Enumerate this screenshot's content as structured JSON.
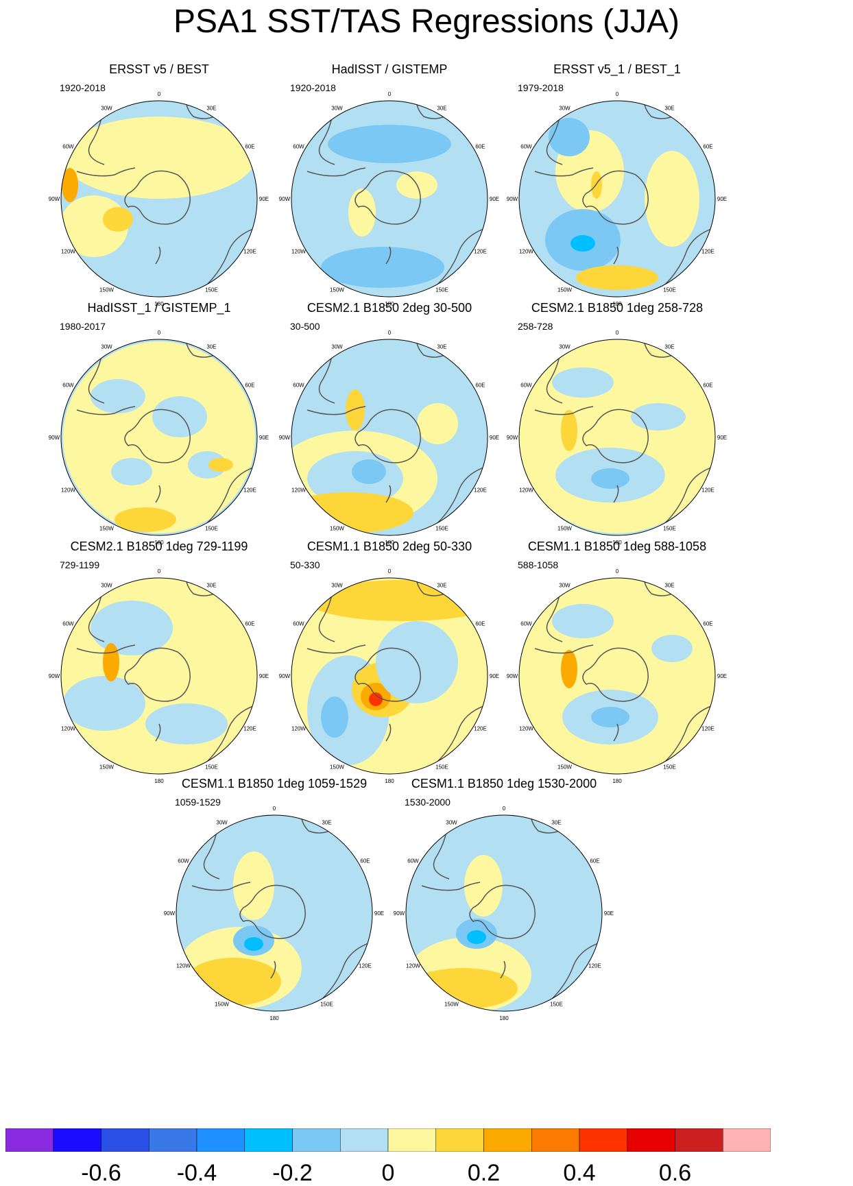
{
  "title": "PSA1 SST/TAS Regressions (JJA)",
  "panels": [
    {
      "title": "ERSST v5 / BEST",
      "years": "1920-2018"
    },
    {
      "title": "HadISST / GISTEMP",
      "years": "1920-2018"
    },
    {
      "title": "ERSST v5_1 / BEST_1",
      "years": "1979-2018"
    },
    {
      "title": "HadISST_1 / GISTEMP_1",
      "years": "1980-2017"
    },
    {
      "title": "CESM2.1 B1850 2deg 30-500",
      "years": "30-500"
    },
    {
      "title": "CESM2.1 B1850 1deg 258-728",
      "years": "258-728"
    },
    {
      "title": "CESM2.1 B1850 1deg 729-1199",
      "years": "729-1199"
    },
    {
      "title": "CESM1.1 B1850 2deg 50-330",
      "years": "50-330"
    },
    {
      "title": "CESM1.1 B1850 1deg 588-1058",
      "years": "588-1058"
    },
    {
      "title": "CESM1.1 B1850 1deg 1059-1529",
      "years": "1059-1529"
    },
    {
      "title": "CESM1.1 B1850 1deg 1530-2000",
      "years": "1530-2000"
    }
  ],
  "longitude_labels": [
    "0",
    "30E",
    "60E",
    "90E",
    "120E",
    "150E",
    "180",
    "150W",
    "120W",
    "90W",
    "60W",
    "30W"
  ],
  "colorbar": {
    "colors": [
      "#8a2be2",
      "#1a0dff",
      "#2a4fe6",
      "#3a78e8",
      "#1e90ff",
      "#00bfff",
      "#7cc8f5",
      "#b3dff3",
      "#fdf7a0",
      "#fdd63a",
      "#fdaa00",
      "#fd7a00",
      "#fe3300",
      "#e60000",
      "#cc1f1f",
      "#ffb3b3"
    ],
    "labels": [
      "-0.6",
      "-0.4",
      "-0.2",
      "0",
      "0.2",
      "0.4",
      "0.6"
    ]
  }
}
